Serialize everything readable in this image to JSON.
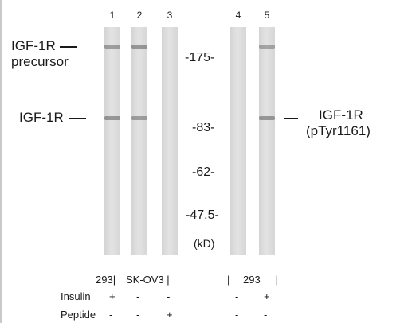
{
  "lanes": [
    {
      "num": "1",
      "precursor_band": 0.5,
      "igf_band": 0.55
    },
    {
      "num": "2",
      "precursor_band": 0.55,
      "igf_band": 0.5
    },
    {
      "num": "3",
      "precursor_band": 0,
      "igf_band": 0
    },
    {
      "num": "4",
      "precursor_band": 0,
      "igf_band": 0
    },
    {
      "num": "5",
      "precursor_band": 0.45,
      "igf_band": 0.55
    }
  ],
  "labels": {
    "precursor_line1": "IGF-1R",
    "precursor_line2": "precursor",
    "igf1r": "IGF-1R",
    "right_line1": "IGF-1R",
    "right_line2": "(pTyr1161)"
  },
  "markers": [
    "-175-",
    "-83-",
    "-62-",
    "-47.5-"
  ],
  "marker_unit": "(kD)",
  "cell_lines": {
    "a": "293|",
    "b": "SK-OV3 |",
    "c": "|",
    "d": "293",
    "e": "|"
  },
  "rows": {
    "insulin": {
      "label": "Insulin",
      "values": [
        "+",
        "-",
        "-",
        "-",
        "+"
      ]
    },
    "peptide": {
      "label": "Peptide",
      "values": [
        "-",
        "-",
        "+",
        "-",
        "-"
      ]
    }
  }
}
